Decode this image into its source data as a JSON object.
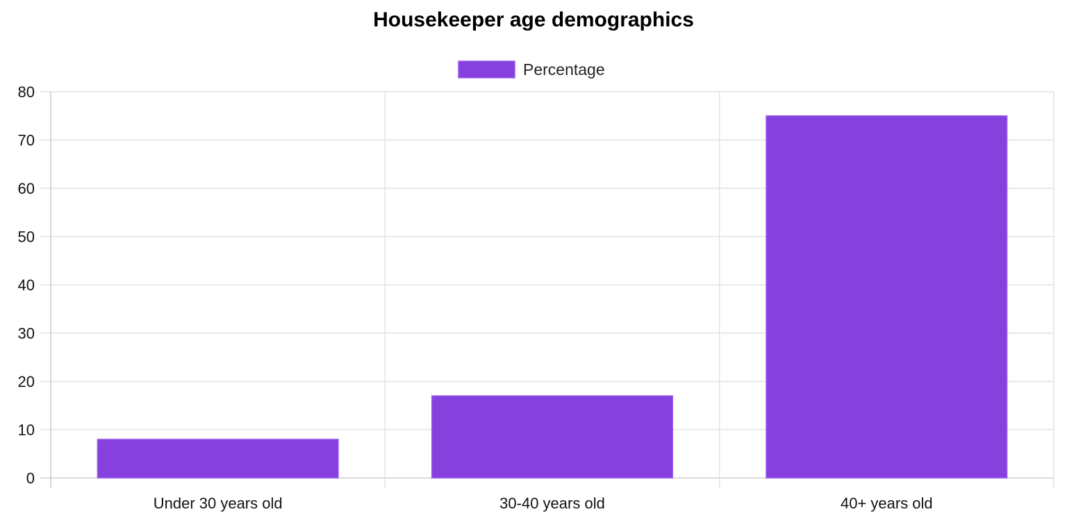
{
  "chart_data": {
    "type": "bar",
    "title": "Housekeeper age demographics",
    "categories": [
      "Under 30 years old",
      "30-40 years old",
      "40+ years old"
    ],
    "series": [
      {
        "name": "Percentage",
        "values": [
          8,
          17,
          75
        ],
        "color": "#8640de",
        "border_color": "#9a5cf0"
      }
    ],
    "xlabel": "",
    "ylabel": "",
    "ylim": [
      0,
      80
    ],
    "yticks": [
      "0",
      "10",
      "20",
      "30",
      "40",
      "50",
      "60",
      "70",
      "80"
    ],
    "grid": true,
    "legend_position": "top-center"
  }
}
